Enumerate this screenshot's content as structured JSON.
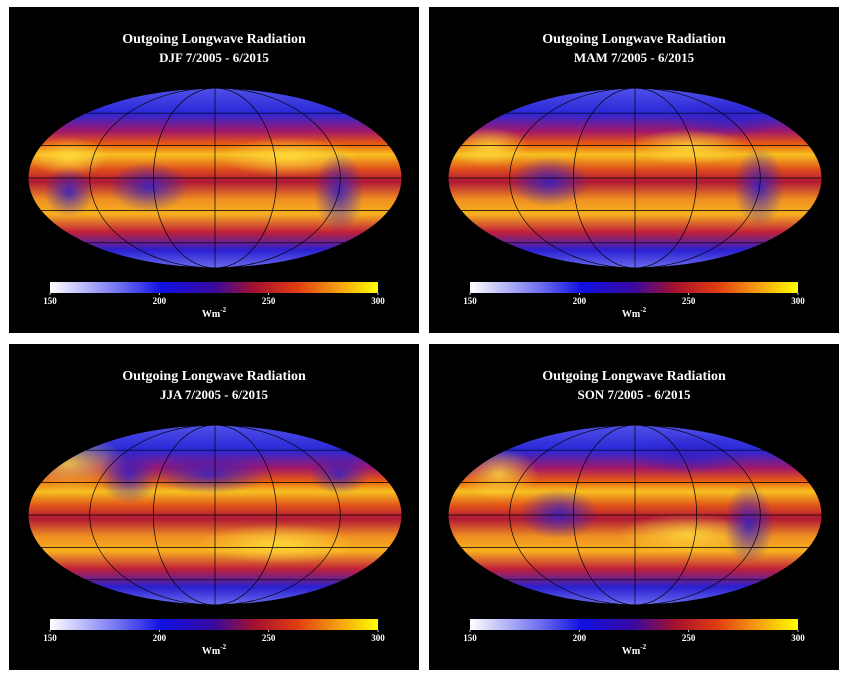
{
  "panels": [
    {
      "title": "Outgoing Longwave Radiation",
      "subtitle": "DJF  7/2005 - 6/2015",
      "colorbar": {
        "range": [
          150,
          300
        ],
        "ticks": [
          150,
          200,
          250,
          300
        ],
        "unit": "Wm",
        "unit_exponent": "-2"
      }
    },
    {
      "title": "Outgoing Longwave Radiation",
      "subtitle": "MAM  7/2005 - 6/2015",
      "colorbar": {
        "range": [
          150,
          300
        ],
        "ticks": [
          150,
          200,
          250,
          300
        ],
        "unit": "Wm",
        "unit_exponent": "-2"
      }
    },
    {
      "title": "Outgoing Longwave Radiation",
      "subtitle": "JJA  7/2005 - 6/2015",
      "colorbar": {
        "range": [
          150,
          300
        ],
        "ticks": [
          150,
          200,
          250,
          300
        ],
        "unit": "Wm",
        "unit_exponent": "-2"
      }
    },
    {
      "title": "Outgoing Longwave Radiation",
      "subtitle": "SON  7/2005 - 6/2015",
      "colorbar": {
        "range": [
          150,
          300
        ],
        "ticks": [
          150,
          200,
          250,
          300
        ],
        "unit": "Wm",
        "unit_exponent": "-2"
      }
    }
  ]
}
